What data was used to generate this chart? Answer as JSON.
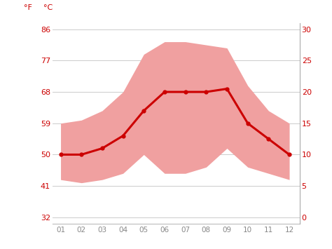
{
  "months": [
    1,
    2,
    3,
    4,
    5,
    6,
    7,
    8,
    9,
    10,
    11,
    12
  ],
  "month_labels": [
    "01",
    "02",
    "03",
    "04",
    "05",
    "06",
    "07",
    "08",
    "09",
    "10",
    "11",
    "12"
  ],
  "mean_temp_c": [
    10,
    10,
    11,
    13,
    17,
    20,
    20,
    20,
    20.5,
    15,
    12.5,
    10
  ],
  "max_temp_c": [
    15,
    15.5,
    17,
    20,
    26,
    28,
    28,
    27.5,
    27,
    21,
    17,
    15
  ],
  "min_temp_c": [
    6,
    5.5,
    6,
    7,
    10,
    7,
    7,
    8,
    11,
    8,
    7,
    6
  ],
  "band_color": "#f0a0a0",
  "line_color": "#cc0000",
  "background_color": "#ffffff",
  "grid_color": "#cccccc",
  "yticks_c": [
    0,
    5,
    10,
    15,
    20,
    25,
    30
  ],
  "yticks_f": [
    32,
    41,
    50,
    59,
    68,
    77,
    86
  ],
  "ylim_c": [
    -1,
    31
  ],
  "xlim": [
    0.6,
    12.5
  ],
  "tick_color": "#cc0000",
  "xtick_color": "#888888",
  "label_color": "#cc0000",
  "right_spine_color": "#aaaaaa"
}
